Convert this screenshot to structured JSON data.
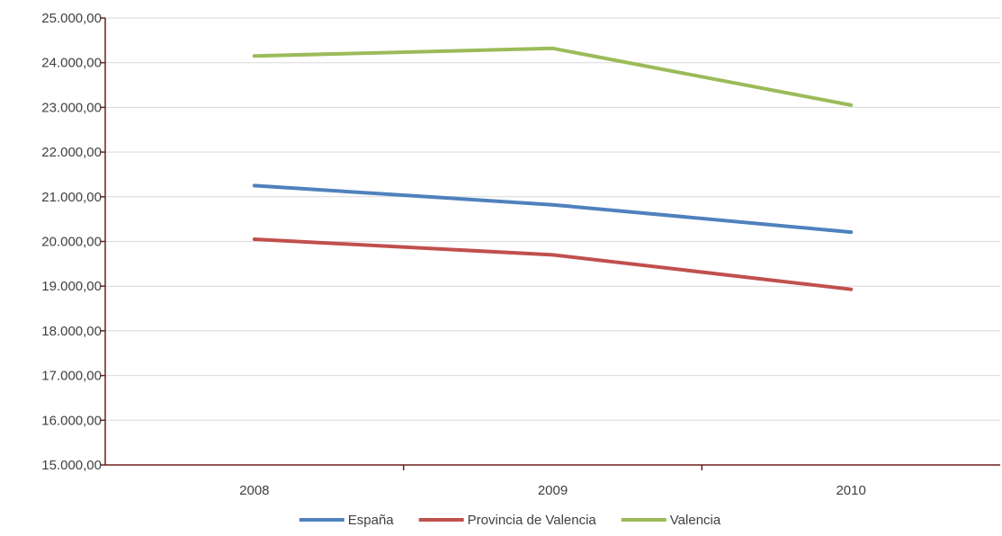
{
  "chart_data": {
    "type": "line",
    "title": "",
    "xlabel": "",
    "ylabel": "",
    "categories": [
      "2008",
      "2009",
      "2010"
    ],
    "ylim": [
      15000,
      25000
    ],
    "ytick_step": 1000,
    "ytick_labels": [
      "15.000,00",
      "16.000,00",
      "17.000,00",
      "18.000,00",
      "19.000,00",
      "20.000,00",
      "21.000,00",
      "22.000,00",
      "23.000,00",
      "24.000,00",
      "25.000,00"
    ],
    "grid": true,
    "legend_position": "bottom",
    "series": [
      {
        "name": "España",
        "color": "#4f81bd",
        "values": [
          21250,
          20820,
          20210
        ]
      },
      {
        "name": "Provincia de Valencia",
        "color": "#c0504d",
        "values": [
          20050,
          19700,
          18930
        ]
      },
      {
        "name": "Valencia",
        "color": "#9bbb59",
        "values": [
          24150,
          24320,
          23050
        ]
      }
    ]
  }
}
